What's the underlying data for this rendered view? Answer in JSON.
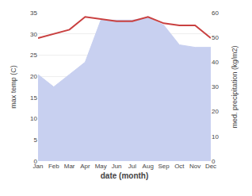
{
  "chart_data": {
    "type": "line",
    "xlabel": "date (month)",
    "ylabel": "max temp (C)",
    "y2label": "med. precipitation (kg/m2)",
    "categories": [
      "Jan",
      "Feb",
      "Mar",
      "Apr",
      "May",
      "Jun",
      "Jul",
      "Aug",
      "Sep",
      "Oct",
      "Nov",
      "Dec"
    ],
    "series": [
      {
        "type": "area",
        "axis": "y2",
        "color": "#c8d0f0",
        "values": [
          35,
          30,
          35,
          40,
          57,
          57,
          57,
          58,
          55,
          47,
          46,
          46
        ]
      },
      {
        "type": "line",
        "axis": "y",
        "color": "#c94040",
        "values": [
          29.0,
          30.0,
          31.0,
          34.0,
          33.5,
          33.0,
          33.0,
          34.0,
          32.5,
          32.0,
          32.0,
          29.0
        ]
      }
    ],
    "ylim": [
      0,
      35
    ],
    "yticks": [
      0,
      5,
      10,
      15,
      20,
      25,
      30,
      35
    ],
    "y2lim": [
      0,
      60
    ],
    "y2ticks": [
      0,
      10,
      20,
      30,
      40,
      50,
      60
    ],
    "grid": true
  }
}
